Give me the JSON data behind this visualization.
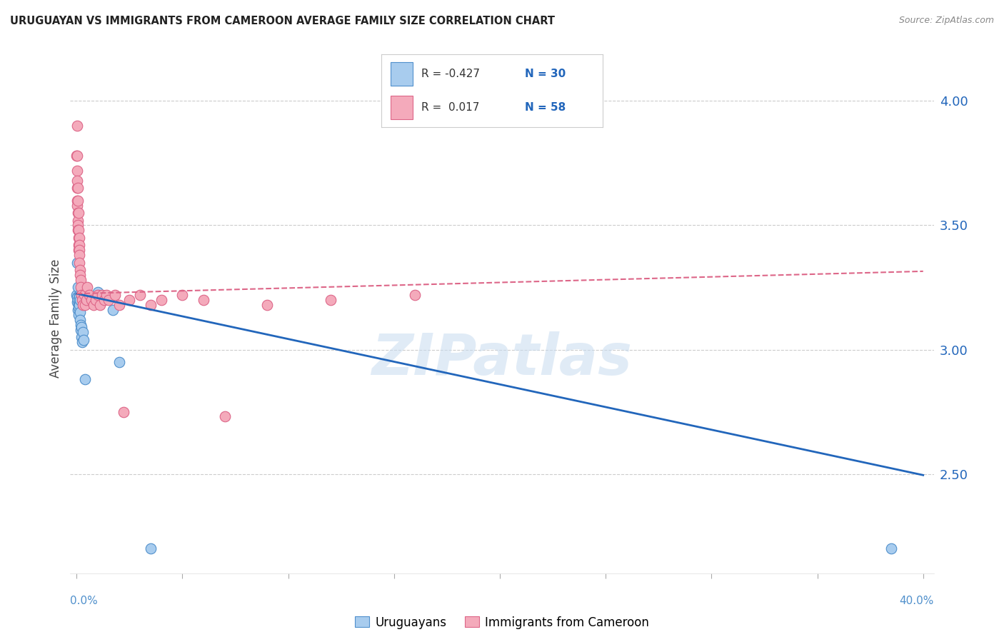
{
  "title": "URUGUAYAN VS IMMIGRANTS FROM CAMEROON AVERAGE FAMILY SIZE CORRELATION CHART",
  "source": "Source: ZipAtlas.com",
  "ylabel": "Average Family Size",
  "right_yticks": [
    2.5,
    3.0,
    3.5,
    4.0
  ],
  "watermark": "ZIPatlas",
  "legend_label1": "Uruguayans",
  "legend_label2": "Immigrants from Cameroon",
  "r1": "-0.427",
  "n1": "30",
  "r2": "0.017",
  "n2": "58",
  "blue_fill": "#A8CCEE",
  "pink_fill": "#F4AABB",
  "blue_edge": "#5090CC",
  "pink_edge": "#DD6688",
  "blue_line_color": "#2266BB",
  "pink_line_color": "#DD6688",
  "blue_scatter": [
    [
      0.0,
      3.22
    ],
    [
      0.0002,
      3.21
    ],
    [
      0.0003,
      3.35
    ],
    [
      0.0004,
      3.19
    ],
    [
      0.0005,
      3.2
    ],
    [
      0.0006,
      3.16
    ],
    [
      0.0007,
      3.25
    ],
    [
      0.0008,
      3.18
    ],
    [
      0.0009,
      3.14
    ],
    [
      0.001,
      3.17
    ],
    [
      0.0011,
      3.22
    ],
    [
      0.0012,
      3.19
    ],
    [
      0.0013,
      3.21
    ],
    [
      0.0014,
      3.18
    ],
    [
      0.0015,
      3.2
    ],
    [
      0.0016,
      3.15
    ],
    [
      0.0017,
      3.12
    ],
    [
      0.0018,
      3.1
    ],
    [
      0.002,
      3.08
    ],
    [
      0.0022,
      3.05
    ],
    [
      0.0024,
      3.09
    ],
    [
      0.0026,
      3.03
    ],
    [
      0.0028,
      3.07
    ],
    [
      0.0032,
      3.04
    ],
    [
      0.0038,
      2.88
    ],
    [
      0.01,
      3.23
    ],
    [
      0.017,
      3.16
    ],
    [
      0.02,
      2.95
    ],
    [
      0.035,
      2.2
    ],
    [
      0.385,
      2.2
    ]
  ],
  "pink_scatter": [
    [
      0.0,
      3.78
    ],
    [
      0.0001,
      3.72
    ],
    [
      0.0002,
      3.65
    ],
    [
      0.0002,
      3.6
    ],
    [
      0.0003,
      3.9
    ],
    [
      0.0003,
      3.78
    ],
    [
      0.0004,
      3.68
    ],
    [
      0.0004,
      3.58
    ],
    [
      0.0005,
      3.65
    ],
    [
      0.0005,
      3.6
    ],
    [
      0.0006,
      3.55
    ],
    [
      0.0006,
      3.52
    ],
    [
      0.0007,
      3.5
    ],
    [
      0.0007,
      3.48
    ],
    [
      0.0008,
      3.45
    ],
    [
      0.0008,
      3.42
    ],
    [
      0.0009,
      3.4
    ],
    [
      0.001,
      3.55
    ],
    [
      0.001,
      3.48
    ],
    [
      0.0011,
      3.45
    ],
    [
      0.0012,
      3.42
    ],
    [
      0.0012,
      3.4
    ],
    [
      0.0013,
      3.38
    ],
    [
      0.0014,
      3.35
    ],
    [
      0.0015,
      3.32
    ],
    [
      0.0016,
      3.3
    ],
    [
      0.0018,
      3.28
    ],
    [
      0.002,
      3.25
    ],
    [
      0.0022,
      3.22
    ],
    [
      0.0025,
      3.2
    ],
    [
      0.003,
      3.18
    ],
    [
      0.0035,
      3.22
    ],
    [
      0.004,
      3.18
    ],
    [
      0.0045,
      3.2
    ],
    [
      0.005,
      3.25
    ],
    [
      0.006,
      3.22
    ],
    [
      0.007,
      3.2
    ],
    [
      0.008,
      3.18
    ],
    [
      0.009,
      3.2
    ],
    [
      0.01,
      3.22
    ],
    [
      0.011,
      3.18
    ],
    [
      0.012,
      3.22
    ],
    [
      0.013,
      3.2
    ],
    [
      0.014,
      3.22
    ],
    [
      0.015,
      3.2
    ],
    [
      0.018,
      3.22
    ],
    [
      0.02,
      3.18
    ],
    [
      0.022,
      2.75
    ],
    [
      0.025,
      3.2
    ],
    [
      0.03,
      3.22
    ],
    [
      0.035,
      3.18
    ],
    [
      0.04,
      3.2
    ],
    [
      0.05,
      3.22
    ],
    [
      0.06,
      3.2
    ],
    [
      0.07,
      2.73
    ],
    [
      0.09,
      3.18
    ],
    [
      0.12,
      3.2
    ],
    [
      0.16,
      3.22
    ]
  ],
  "blue_line": [
    [
      0.0,
      3.225
    ],
    [
      0.4,
      2.495
    ]
  ],
  "pink_line": [
    [
      0.0,
      3.225
    ],
    [
      0.4,
      3.315
    ]
  ],
  "xlim": [
    -0.003,
    0.405
  ],
  "ylim": [
    2.1,
    4.15
  ],
  "grid_color": "#CCCCCC",
  "bg_color": "#FFFFFF",
  "tick_color": "#AAAAAA"
}
